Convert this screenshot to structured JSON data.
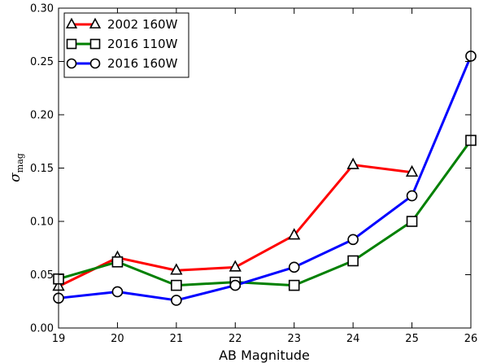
{
  "chart_data": {
    "type": "line",
    "title": "",
    "xlabel": "AB Magnitude",
    "ylabel": "σ",
    "ylabel_sub": "mag",
    "xlim": [
      19,
      26
    ],
    "ylim": [
      0.0,
      0.3
    ],
    "x_ticks": [
      19,
      20,
      21,
      22,
      23,
      24,
      25,
      26
    ],
    "y_ticks": [
      "0.00",
      "0.05",
      "0.10",
      "0.15",
      "0.20",
      "0.25",
      "0.30"
    ],
    "grid": false,
    "legend_position": "top-left",
    "series": [
      {
        "name": "2002 160W",
        "color": "#ff0000",
        "marker": "triangle",
        "x": [
          19,
          20,
          21,
          22,
          23,
          24,
          25
        ],
        "y": [
          0.039,
          0.066,
          0.054,
          0.057,
          0.087,
          0.153,
          0.146
        ]
      },
      {
        "name": "2016 110W",
        "color": "#008000",
        "marker": "square",
        "x": [
          19,
          20,
          21,
          22,
          23,
          24,
          25,
          26
        ],
        "y": [
          0.046,
          0.062,
          0.04,
          0.043,
          0.04,
          0.063,
          0.1,
          0.176
        ]
      },
      {
        "name": "2016 160W",
        "color": "#0000ff",
        "marker": "circle",
        "x": [
          19,
          20,
          21,
          22,
          23,
          24,
          25,
          26
        ],
        "y": [
          0.028,
          0.034,
          0.026,
          0.04,
          0.057,
          0.083,
          0.124,
          0.255
        ]
      }
    ]
  }
}
